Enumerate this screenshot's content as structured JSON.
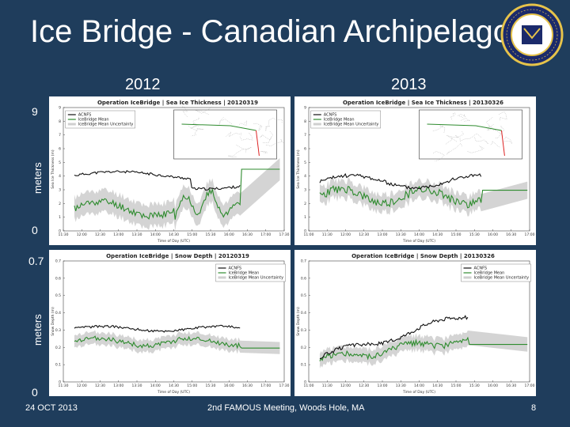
{
  "slide": {
    "title": "Ice Bridge - Canadian Archipelago",
    "year_2012": "2012",
    "year_2013": "2013",
    "axis_top_max": "9",
    "axis_top_min": "0",
    "axis_bottom_max": "0.7",
    "axis_bottom_min": "0",
    "axis_label_top": "meters",
    "axis_label_bottom": "meters",
    "footer_date": "24 OCT 2013",
    "footer_event": "2nd FAMOUS Meeting, Woods Hole, MA",
    "page_number": "8"
  },
  "colors": {
    "background": "#1f3d5c",
    "icebridge_mean": "#2e8b2e",
    "acnfs": "#111111",
    "uncertainty": "#cfcfcf"
  },
  "panels": {
    "thick_2012": {
      "title": "Operation IceBridge | Sea Ice Thickness | 20120319",
      "legend": [
        "ACNFS",
        "IceBridge Mean",
        "IceBridge Mean Uncertainty"
      ],
      "ylabel": "Sea Ice Thickness (m)",
      "xlabel": "Time of Day (UTC)",
      "xticks": [
        "11:30",
        "12:00",
        "12:30",
        "13:00",
        "13:30",
        "14:00",
        "14:30",
        "15:00",
        "15:30",
        "16:00",
        "16:30",
        "17:00",
        "17:30"
      ],
      "yticks": [
        "0",
        "1",
        "2",
        "3",
        "4",
        "5",
        "6",
        "7",
        "8",
        "9"
      ]
    },
    "thick_2013": {
      "title": "Operation IceBridge | Sea Ice Thickness | 20130326",
      "legend": [
        "ACNFS",
        "IceBridge Mean",
        "IceBridge Mean Uncertainty"
      ],
      "ylabel": "Sea Ice Thickness (m)",
      "xlabel": "Time of Day (UTC)",
      "xticks": [
        "11:00",
        "11:30",
        "12:00",
        "12:30",
        "13:00",
        "13:30",
        "14:00",
        "14:30",
        "15:00",
        "15:30",
        "16:00",
        "16:30",
        "17:00"
      ],
      "yticks": [
        "0",
        "1",
        "2",
        "3",
        "4",
        "5",
        "6",
        "7",
        "8",
        "9"
      ]
    },
    "snow_2012": {
      "title": "Operation IceBridge | Snow Depth | 20120319",
      "legend": [
        "ACNFS",
        "IceBridge Mean",
        "IceBridge Mean Uncertainty"
      ],
      "ylabel": "Snow Depth (m)",
      "xlabel": "Time of Day (UTC)",
      "xticks": [
        "11:30",
        "12:00",
        "12:30",
        "13:00",
        "13:30",
        "14:00",
        "14:30",
        "15:00",
        "15:30",
        "16:00",
        "16:30",
        "17:00",
        "17:30"
      ],
      "yticks": [
        "0",
        "0.1",
        "0.2",
        "0.3",
        "0.4",
        "0.5",
        "0.6",
        "0.7"
      ]
    },
    "snow_2013": {
      "title": "Operation IceBridge | Snow Depth | 20130326",
      "legend": [
        "ACNFS",
        "IceBridge Mean",
        "IceBridge Mean Uncertainty"
      ],
      "ylabel": "Snow Depth (m)",
      "xlabel": "Time of Day (UTC)",
      "xticks": [
        "11:00",
        "11:30",
        "12:00",
        "12:30",
        "13:00",
        "13:30",
        "14:00",
        "14:30",
        "15:00",
        "15:30",
        "16:00",
        "16:30",
        "17:00"
      ],
      "yticks": [
        "0",
        "0.1",
        "0.2",
        "0.3",
        "0.4",
        "0.5",
        "0.6",
        "0.7"
      ]
    }
  }
}
